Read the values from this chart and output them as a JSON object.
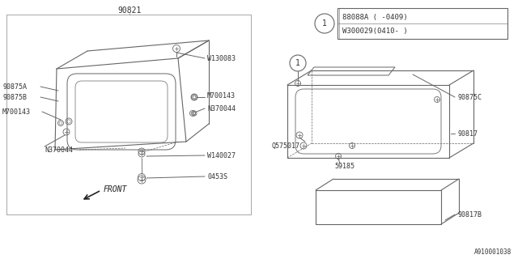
{
  "bg_color": "#ffffff",
  "line_color": "#666666",
  "text_color": "#333333",
  "fig_width": 6.4,
  "fig_height": 3.2,
  "title_bottom": "A910001038",
  "legend_line1": "88088A ( -0409)",
  "legend_line2": "W300029(0410- )",
  "part_number_top": "90821"
}
